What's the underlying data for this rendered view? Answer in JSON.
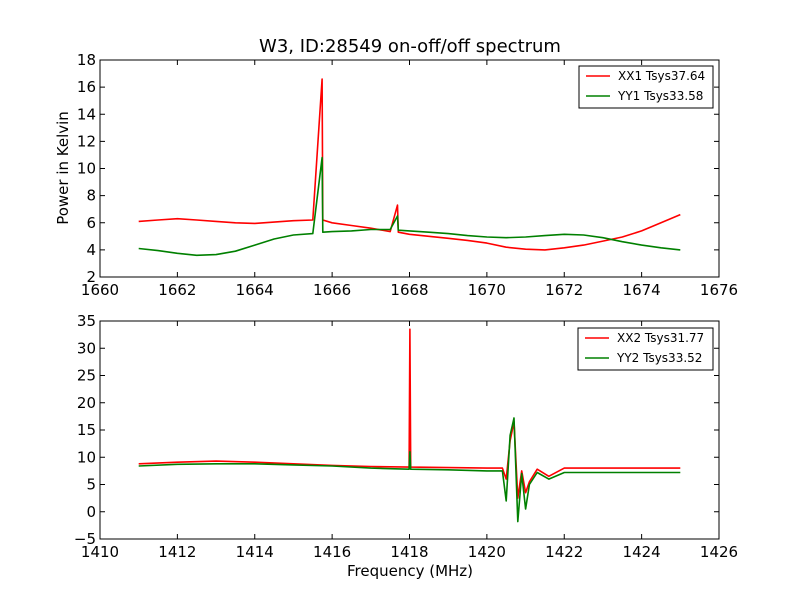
{
  "chart_data": [
    {
      "type": "line",
      "title": "W3, ID:28549 on-off/off spectrum",
      "xlabel": "",
      "ylabel": "Power in Kelvin",
      "xlim": [
        1660,
        1676
      ],
      "ylim": [
        2,
        18
      ],
      "xticks": [
        1660,
        1662,
        1664,
        1666,
        1668,
        1670,
        1672,
        1674,
        1676
      ],
      "yticks": [
        2,
        4,
        6,
        8,
        10,
        12,
        14,
        16,
        18
      ],
      "grid": false,
      "legend_position": "top-right",
      "series": [
        {
          "name": "XX1 Tsys37.64",
          "color": "#ff0000",
          "x": [
            1661.0,
            1661.5,
            1662.0,
            1662.5,
            1663.0,
            1663.5,
            1664.0,
            1664.5,
            1665.0,
            1665.5,
            1665.74,
            1665.76,
            1666.0,
            1666.5,
            1667.0,
            1667.5,
            1667.69,
            1667.71,
            1668.0,
            1668.5,
            1669.0,
            1669.5,
            1670.0,
            1670.5,
            1671.0,
            1671.5,
            1672.0,
            1672.5,
            1673.0,
            1673.5,
            1674.0,
            1674.5,
            1675.0
          ],
          "values": [
            6.1,
            6.2,
            6.3,
            6.2,
            6.1,
            6.0,
            5.95,
            6.05,
            6.15,
            6.2,
            16.6,
            6.2,
            6.0,
            5.8,
            5.6,
            5.35,
            7.3,
            5.3,
            5.15,
            5.0,
            4.85,
            4.7,
            4.5,
            4.2,
            4.05,
            4.0,
            4.15,
            4.35,
            4.65,
            4.95,
            5.4,
            6.0,
            6.6
          ]
        },
        {
          "name": "YY1 Tsys33.58",
          "color": "#008000",
          "x": [
            1661.0,
            1661.5,
            1662.0,
            1662.5,
            1663.0,
            1663.5,
            1664.0,
            1664.5,
            1665.0,
            1665.5,
            1665.74,
            1665.76,
            1666.0,
            1666.5,
            1667.0,
            1667.5,
            1667.69,
            1667.71,
            1668.0,
            1668.5,
            1669.0,
            1669.5,
            1670.0,
            1670.5,
            1671.0,
            1671.5,
            1672.0,
            1672.5,
            1673.0,
            1673.5,
            1674.0,
            1674.5,
            1675.0
          ],
          "values": [
            4.1,
            3.95,
            3.75,
            3.6,
            3.65,
            3.9,
            4.35,
            4.8,
            5.1,
            5.2,
            10.8,
            5.3,
            5.35,
            5.4,
            5.5,
            5.5,
            6.5,
            5.45,
            5.4,
            5.3,
            5.2,
            5.05,
            4.95,
            4.9,
            4.95,
            5.05,
            5.15,
            5.1,
            4.9,
            4.6,
            4.35,
            4.15,
            4.0
          ]
        }
      ]
    },
    {
      "type": "line",
      "title": "",
      "xlabel": "Frequency (MHz)",
      "ylabel": "",
      "xlim": [
        1410,
        1426
      ],
      "ylim": [
        -5,
        35
      ],
      "xticks": [
        1410,
        1412,
        1414,
        1416,
        1418,
        1420,
        1422,
        1424,
        1426
      ],
      "yticks": [
        -5,
        0,
        5,
        10,
        15,
        20,
        25,
        30,
        35
      ],
      "grid": false,
      "legend_position": "top-right",
      "series": [
        {
          "name": "XX2 Tsys31.77",
          "color": "#ff0000",
          "x": [
            1411.0,
            1412.0,
            1413.0,
            1414.0,
            1415.0,
            1416.0,
            1417.0,
            1417.99,
            1418.01,
            1418.03,
            1419.0,
            1420.0,
            1420.4,
            1420.5,
            1420.6,
            1420.7,
            1420.8,
            1420.9,
            1421.0,
            1421.1,
            1421.3,
            1421.6,
            1422.0,
            1423.0,
            1424.0,
            1425.0
          ],
          "values": [
            8.8,
            9.1,
            9.3,
            9.1,
            8.8,
            8.5,
            8.3,
            8.2,
            33.5,
            8.2,
            8.1,
            8.0,
            8.0,
            6.0,
            13.0,
            16.5,
            2.5,
            7.5,
            3.5,
            5.5,
            7.8,
            6.5,
            8.0,
            8.0,
            8.0,
            8.0
          ]
        },
        {
          "name": "YY2 Tsys33.52",
          "color": "#008000",
          "x": [
            1411.0,
            1412.0,
            1413.0,
            1414.0,
            1415.0,
            1416.0,
            1417.0,
            1417.99,
            1418.01,
            1418.03,
            1419.0,
            1420.0,
            1420.4,
            1420.5,
            1420.6,
            1420.7,
            1420.8,
            1420.9,
            1421.0,
            1421.1,
            1421.3,
            1421.6,
            1422.0,
            1423.0,
            1424.0,
            1425.0
          ],
          "values": [
            8.4,
            8.7,
            8.8,
            8.8,
            8.6,
            8.4,
            8.0,
            7.8,
            11.0,
            7.8,
            7.7,
            7.5,
            7.5,
            2.0,
            14.0,
            17.2,
            -1.8,
            7.0,
            0.5,
            5.0,
            7.2,
            6.0,
            7.2,
            7.2,
            7.2,
            7.2
          ]
        }
      ]
    }
  ]
}
